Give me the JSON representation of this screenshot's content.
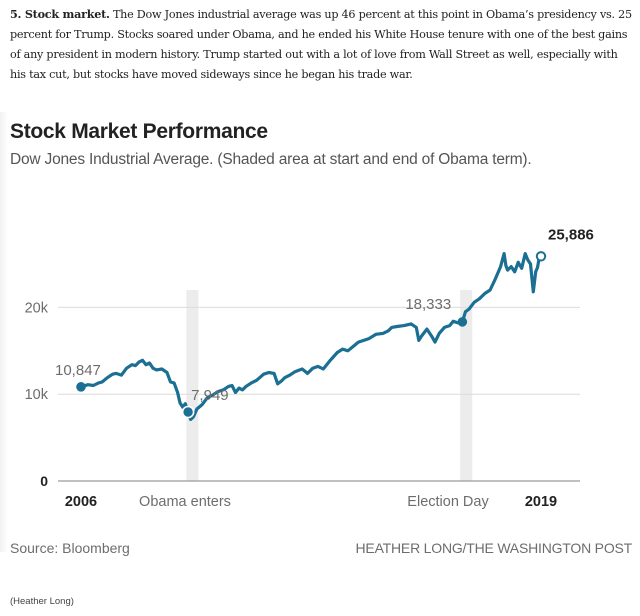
{
  "article": {
    "lead_bold": "5. Stock market.",
    "body": " The Dow Jones industrial average was up 46 percent at this point in Obama’s presidency vs. 25 percent for Trump. Stocks soared under Obama, and he ended his White House tenure with one of the best gains of any president in modern history. Trump started out with a lot of love from Wall Street as well, especially with his tax cut, but stocks have moved sideways since he began his trade war."
  },
  "colors": {
    "line": "#1a6f93",
    "shade": "#ececec",
    "grid": "#dcdcdc",
    "axis": "#9a9a9a",
    "label_gray": "#6d6d6d",
    "label_dark": "#222222"
  },
  "footer": {
    "source": "Source: Bloomberg",
    "credit": "HEATHER LONG/THE WASHINGTON POST",
    "photo_credit": "(Heather Long)"
  },
  "chart_data": {
    "type": "line",
    "title": "Stock Market Performance",
    "subtitle": "Dow Jones Industrial Average. (Shaded area at start and end of Obama term).",
    "xlabel": "",
    "ylabel": "",
    "xlim": [
      2006.0,
      2019.4
    ],
    "ylim": [
      0,
      27000
    ],
    "grid": true,
    "y_ticks": [
      {
        "value": 0,
        "label": "0"
      },
      {
        "value": 10000,
        "label": "10k"
      },
      {
        "value": 20000,
        "label": "20k"
      }
    ],
    "x_ticks": [
      {
        "value": 2006.0,
        "label": "2006",
        "style": "bold"
      },
      {
        "value": 2009.08,
        "label": "Obama enters",
        "style": "normal"
      },
      {
        "value": 2016.85,
        "label": "Election Day",
        "style": "normal"
      },
      {
        "value": 2019.0,
        "label": "2019",
        "style": "bold"
      }
    ],
    "shaded_periods": [
      {
        "name": "Obama enters",
        "start": 2009.0,
        "end": 2009.15
      },
      {
        "name": "Election Day",
        "start": 2016.8,
        "end": 2016.95
      }
    ],
    "annotations": [
      {
        "x": 2006.0,
        "y": 10847,
        "label": "10,847",
        "marker": "filled"
      },
      {
        "x": 2009.05,
        "y": 7949,
        "label": "7,949",
        "marker": "filled-ring"
      },
      {
        "x": 2016.86,
        "y": 18333,
        "label": "18,333",
        "marker": "filled"
      },
      {
        "x": 2019.1,
        "y": 25886,
        "label": "25,886",
        "marker": "hollow"
      }
    ],
    "series": [
      {
        "name": "Dow Jones Industrial Average",
        "x": [
          2006.0,
          2006.2,
          2006.35,
          2006.5,
          2006.6,
          2006.75,
          2006.9,
          2007.0,
          2007.15,
          2007.3,
          2007.45,
          2007.55,
          2007.65,
          2007.75,
          2007.85,
          2007.95,
          2008.05,
          2008.15,
          2008.3,
          2008.45,
          2008.55,
          2008.65,
          2008.75,
          2008.82,
          2008.9,
          2008.97,
          2009.05,
          2009.12,
          2009.2,
          2009.3,
          2009.45,
          2009.6,
          2009.75,
          2009.9,
          2010.05,
          2010.2,
          2010.3,
          2010.4,
          2010.5,
          2010.6,
          2010.7,
          2010.85,
          2011.0,
          2011.2,
          2011.35,
          2011.5,
          2011.6,
          2011.7,
          2011.8,
          2011.95,
          2012.1,
          2012.3,
          2012.45,
          2012.6,
          2012.75,
          2012.9,
          2013.1,
          2013.3,
          2013.45,
          2013.6,
          2013.75,
          2013.9,
          2014.05,
          2014.2,
          2014.4,
          2014.6,
          2014.75,
          2014.85,
          2015.0,
          2015.2,
          2015.4,
          2015.55,
          2015.62,
          2015.7,
          2015.85,
          2016.0,
          2016.08,
          2016.2,
          2016.35,
          2016.5,
          2016.6,
          2016.75,
          2016.86,
          2016.95,
          2017.05,
          2017.2,
          2017.35,
          2017.5,
          2017.65,
          2017.8,
          2017.95,
          2018.05,
          2018.1,
          2018.15,
          2018.25,
          2018.35,
          2018.45,
          2018.55,
          2018.65,
          2018.72,
          2018.8,
          2018.88,
          2018.95,
          2019.0,
          2019.05,
          2019.1
        ],
        "values": [
          10847,
          11100,
          11000,
          11300,
          11400,
          11900,
          12300,
          12400,
          12200,
          13000,
          13400,
          13300,
          13700,
          13900,
          13400,
          13600,
          13000,
          12800,
          12900,
          12500,
          11400,
          11300,
          10200,
          9000,
          8500,
          8900,
          7949,
          7100,
          7400,
          8300,
          8800,
          9600,
          9900,
          10300,
          10500,
          10900,
          11000,
          10200,
          10700,
          10500,
          10900,
          11300,
          11600,
          12300,
          12500,
          12400,
          11200,
          11500,
          11900,
          12200,
          12600,
          12900,
          12400,
          13000,
          13200,
          12900,
          13900,
          14800,
          15200,
          15000,
          15500,
          16000,
          16200,
          16400,
          16900,
          17000,
          17300,
          17700,
          17800,
          17900,
          18100,
          17700,
          16200,
          16700,
          17500,
          16600,
          16000,
          17000,
          17700,
          17900,
          18400,
          18200,
          18333,
          19500,
          19800,
          20600,
          21000,
          21600,
          22000,
          23300,
          24700,
          26200,
          24800,
          24300,
          24700,
          24100,
          25200,
          24500,
          26200,
          25500,
          25000,
          21800,
          24100,
          24600,
          25700,
          25886
        ]
      }
    ]
  }
}
